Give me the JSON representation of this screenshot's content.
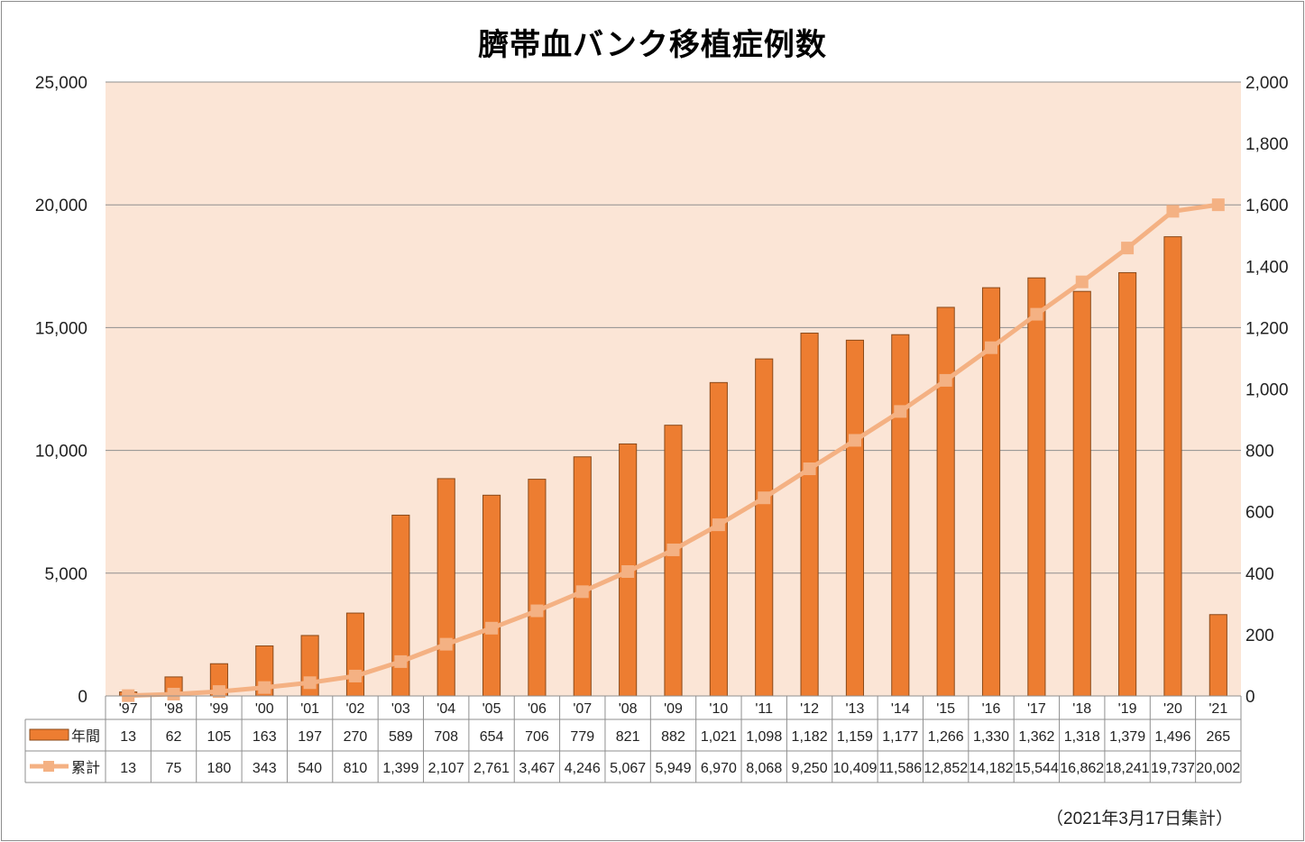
{
  "chart_data": {
    "type": "bar+line",
    "title": "臍帯血バンク移植症例数",
    "categories": [
      "'97",
      "'98",
      "'99",
      "'00",
      "'01",
      "'02",
      "'03",
      "'04",
      "'05",
      "'06",
      "'07",
      "'08",
      "'09",
      "'10",
      "'11",
      "'12",
      "'13",
      "'14",
      "'15",
      "'16",
      "'17",
      "'18",
      "'19",
      "'20",
      "'21"
    ],
    "series": [
      {
        "name": "年間",
        "type": "bar",
        "axis": "right",
        "color": "#ed7d31",
        "values": [
          13,
          62,
          105,
          163,
          197,
          270,
          589,
          708,
          654,
          706,
          779,
          821,
          882,
          1021,
          1098,
          1182,
          1159,
          1177,
          1266,
          1330,
          1362,
          1318,
          1379,
          1496,
          265
        ],
        "labels": [
          "13",
          "62",
          "105",
          "163",
          "197",
          "270",
          "589",
          "708",
          "654",
          "706",
          "779",
          "821",
          "882",
          "1,021",
          "1,098",
          "1,182",
          "1,159",
          "1,177",
          "1,266",
          "1,330",
          "1,362",
          "1,318",
          "1,379",
          "1,496",
          "265"
        ]
      },
      {
        "name": "累計",
        "type": "line",
        "axis": "left",
        "color": "#f4b183",
        "values": [
          13,
          75,
          180,
          343,
          540,
          810,
          1399,
          2107,
          2761,
          3467,
          4246,
          5067,
          5949,
          6970,
          8068,
          9250,
          10409,
          11586,
          12852,
          14182,
          15544,
          16862,
          18241,
          19737,
          20002
        ],
        "labels": [
          "13",
          "75",
          "180",
          "343",
          "540",
          "810",
          "1,399",
          "2,107",
          "2,761",
          "3,467",
          "4,246",
          "5,067",
          "5,949",
          "6,970",
          "8,068",
          "9,250",
          "10,409",
          "11,586",
          "12,852",
          "14,182",
          "15,544",
          "16,862",
          "18,241",
          "19,737",
          "20,002"
        ]
      }
    ],
    "y_left": {
      "lim": [
        0,
        25000
      ],
      "ticks": [
        "0",
        "5,000",
        "10,000",
        "15,000",
        "20,000",
        "25,000"
      ],
      "tick_values": [
        0,
        5000,
        10000,
        15000,
        20000,
        25000
      ]
    },
    "y_right": {
      "lim": [
        0,
        2000
      ],
      "ticks": [
        "0",
        "200",
        "400",
        "600",
        "800",
        "1,000",
        "1,200",
        "1,400",
        "1,600",
        "1,800",
        "2,000"
      ],
      "tick_values": [
        0,
        200,
        400,
        600,
        800,
        1000,
        1200,
        1400,
        1600,
        1800,
        2000
      ]
    },
    "grid": true,
    "plot_background": "#fbe5d6",
    "data_table": true,
    "legend": "in-data-table"
  },
  "footnote": "（2021年3月17日集計）"
}
